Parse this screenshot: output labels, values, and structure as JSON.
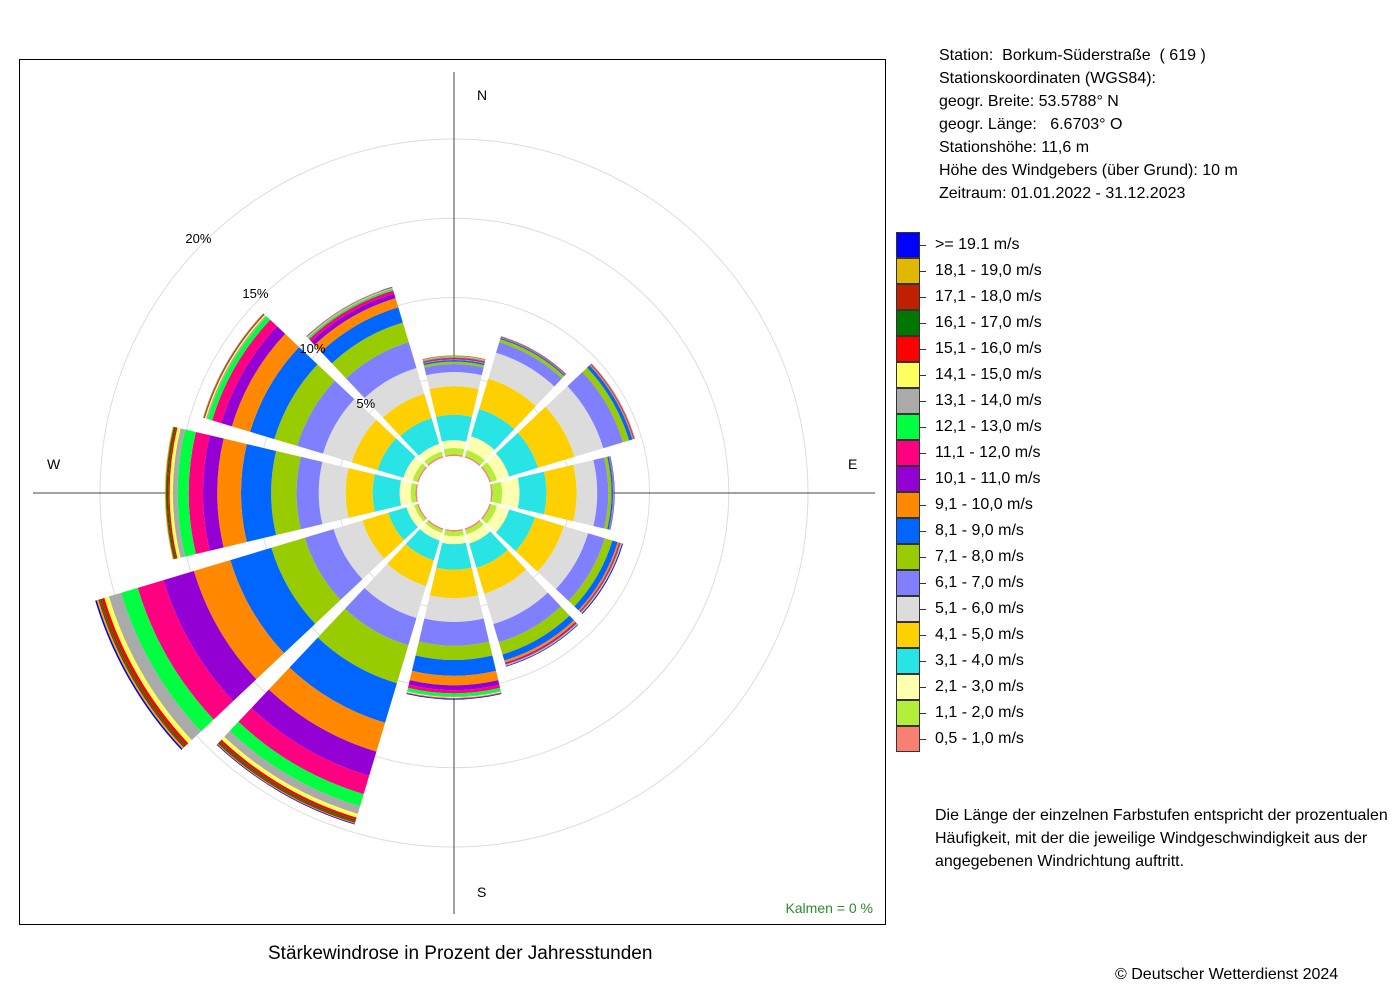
{
  "station": {
    "line1": "Station:  Borkum-Süderstraße  ( 619 )",
    "line2": "Stationskoordinaten (WGS84):",
    "line3": "geogr. Breite: 53.5788° N",
    "line4": "geogr. Länge:   6.6703° O",
    "line5": "Stationshöhe: 11,6 m",
    "line6": "Höhe des Windgebers (über Grund): 10 m",
    "line7": "Zeitraum: 01.01.2022 - 31.12.2023"
  },
  "compass": {
    "n": "N",
    "e": "E",
    "s": "S",
    "w": "W"
  },
  "calms": "Kalmen  =  0 %",
  "note": "Die Länge der einzelnen Farbstufen entspricht der prozentualen Häufigkeit, mit der die jeweilige Windgeschwindigkeit aus der angegebenen Windrichtung auftritt.",
  "copyright": "© Deutscher Wetterdienst  2024",
  "chart_data": {
    "type": "windrose",
    "title": "Stärkewindrose in Prozent der Jahresstunden",
    "rings": [
      5,
      10,
      15,
      20
    ],
    "ring_labels": [
      "5%",
      "10%",
      "15%",
      "20%"
    ],
    "directions_deg": [
      0,
      30,
      60,
      90,
      120,
      150,
      180,
      210,
      240,
      270,
      300,
      330
    ],
    "classes": [
      {
        "label": "0,5 - 1,0 m/s",
        "color": "#fa8072"
      },
      {
        "label": "1,1 - 2,0 m/s",
        "color": "#b3ee3a"
      },
      {
        "label": "2,1 - 3,0 m/s",
        "color": "#ffffb0"
      },
      {
        "label": "3,1 - 4,0 m/s",
        "color": "#28e4e4"
      },
      {
        "label": "4,1 - 5,0 m/s",
        "color": "#ffd000"
      },
      {
        "label": "5,1 - 6,0 m/s",
        "color": "#dcdcdc"
      },
      {
        "label": "6,1 - 7,0 m/s",
        "color": "#8080ff"
      },
      {
        "label": "7,1 - 8,0 m/s",
        "color": "#99cc00"
      },
      {
        "label": "8,1 - 9,0 m/s",
        "color": "#0066ff"
      },
      {
        "label": "9,1 - 10,0 m/s",
        "color": "#ff8800"
      },
      {
        "label": "10,1 - 11,0 m/s",
        "color": "#9400d3"
      },
      {
        "label": "11,1 - 12,0 m/s",
        "color": "#ff0080"
      },
      {
        "label": "12,1 - 13,0 m/s",
        "color": "#00ff40"
      },
      {
        "label": "13,1 - 14,0 m/s",
        "color": "#aaaaaa"
      },
      {
        "label": "14,1 - 15,0 m/s",
        "color": "#ffff60"
      },
      {
        "label": "15,1 - 16,0 m/s",
        "color": "#ff0000"
      },
      {
        "label": "16,1 - 17,0 m/s",
        "color": "#007700"
      },
      {
        "label": "17,1 - 18,0 m/s",
        "color": "#c02000"
      },
      {
        "label": "18,1 - 19,0 m/s",
        "color": "#e0b800"
      },
      {
        "label": ">= 19.1 m/s",
        "color": "#0000ff"
      }
    ],
    "cumulative_percent": [
      [
        0.1,
        0.5,
        1.0,
        2.6,
        4.4,
        5.3,
        5.8,
        5.95,
        6.05,
        6.1,
        6.15,
        6.2,
        6.25,
        6.28,
        6.3,
        6.32,
        6.33,
        6.34,
        6.35,
        6.35
      ],
      [
        0.1,
        0.5,
        1.4,
        3.2,
        5.2,
        6.9,
        7.6,
        7.8,
        7.88,
        7.92,
        7.95,
        7.97,
        7.98,
        7.99,
        7.99,
        8.0,
        8.0,
        8.0,
        8.0,
        8.0
      ],
      [
        0.1,
        0.5,
        1.3,
        3.2,
        5.6,
        7.5,
        8.8,
        9.2,
        9.42,
        9.5,
        9.54,
        9.56,
        9.57,
        9.58,
        9.58,
        9.59,
        9.59,
        9.59,
        9.6,
        9.6
      ],
      [
        0.1,
        0.7,
        1.8,
        3.5,
        5.4,
        6.7,
        7.4,
        7.6,
        7.7,
        7.72,
        7.74,
        7.75,
        7.76,
        7.77,
        7.77,
        7.78,
        7.78,
        7.78,
        7.78,
        7.8
      ],
      [
        0.1,
        0.5,
        1.3,
        3.0,
        4.9,
        6.5,
        7.6,
        8.1,
        8.45,
        8.55,
        8.6,
        8.65,
        8.68,
        8.7,
        8.72,
        8.73,
        8.74,
        8.75,
        8.75,
        8.8
      ],
      [
        0.1,
        0.4,
        1.0,
        2.6,
        4.3,
        6.3,
        7.5,
        8.3,
        8.7,
        8.85,
        8.92,
        8.97,
        9.0,
        9.02,
        9.03,
        9.04,
        9.05,
        9.05,
        9.06,
        9.1
      ],
      [
        0.1,
        0.4,
        0.9,
        2.5,
        4.3,
        5.8,
        7.3,
        8.2,
        9.2,
        9.8,
        10.1,
        10.3,
        10.5,
        10.55,
        10.6,
        10.62,
        10.63,
        10.64,
        10.65,
        10.7
      ],
      [
        0.1,
        0.3,
        0.8,
        2.1,
        3.8,
        5.9,
        7.7,
        10.2,
        12.8,
        14.7,
        16.3,
        17.5,
        18.3,
        18.8,
        19.05,
        19.2,
        19.3,
        19.4,
        19.45,
        19.5
      ],
      [
        0.1,
        0.3,
        0.8,
        2.0,
        3.7,
        5.6,
        7.5,
        9.7,
        12.4,
        14.8,
        16.8,
        18.5,
        19.6,
        20.4,
        20.7,
        20.9,
        21.0,
        21.1,
        21.2,
        21.3
      ],
      [
        0.1,
        0.4,
        1.1,
        2.8,
        4.5,
        6.2,
        7.6,
        9.2,
        11.1,
        12.6,
        13.5,
        14.4,
        15.1,
        15.4,
        15.6,
        15.7,
        15.8,
        15.85,
        15.9,
        15.9
      ],
      [
        0.1,
        0.4,
        1.0,
        2.7,
        4.4,
        6.3,
        8.0,
        9.5,
        11.1,
        12.3,
        13.0,
        13.6,
        13.9,
        14.0,
        14.08,
        14.12,
        14.15,
        14.17,
        14.19,
        14.2
      ],
      [
        0.1,
        0.4,
        0.9,
        2.6,
        4.2,
        5.9,
        7.6,
        8.9,
        9.9,
        10.5,
        10.8,
        11.0,
        11.1,
        11.15,
        11.18,
        11.2,
        11.21,
        11.22,
        11.23,
        11.25
      ]
    ]
  }
}
